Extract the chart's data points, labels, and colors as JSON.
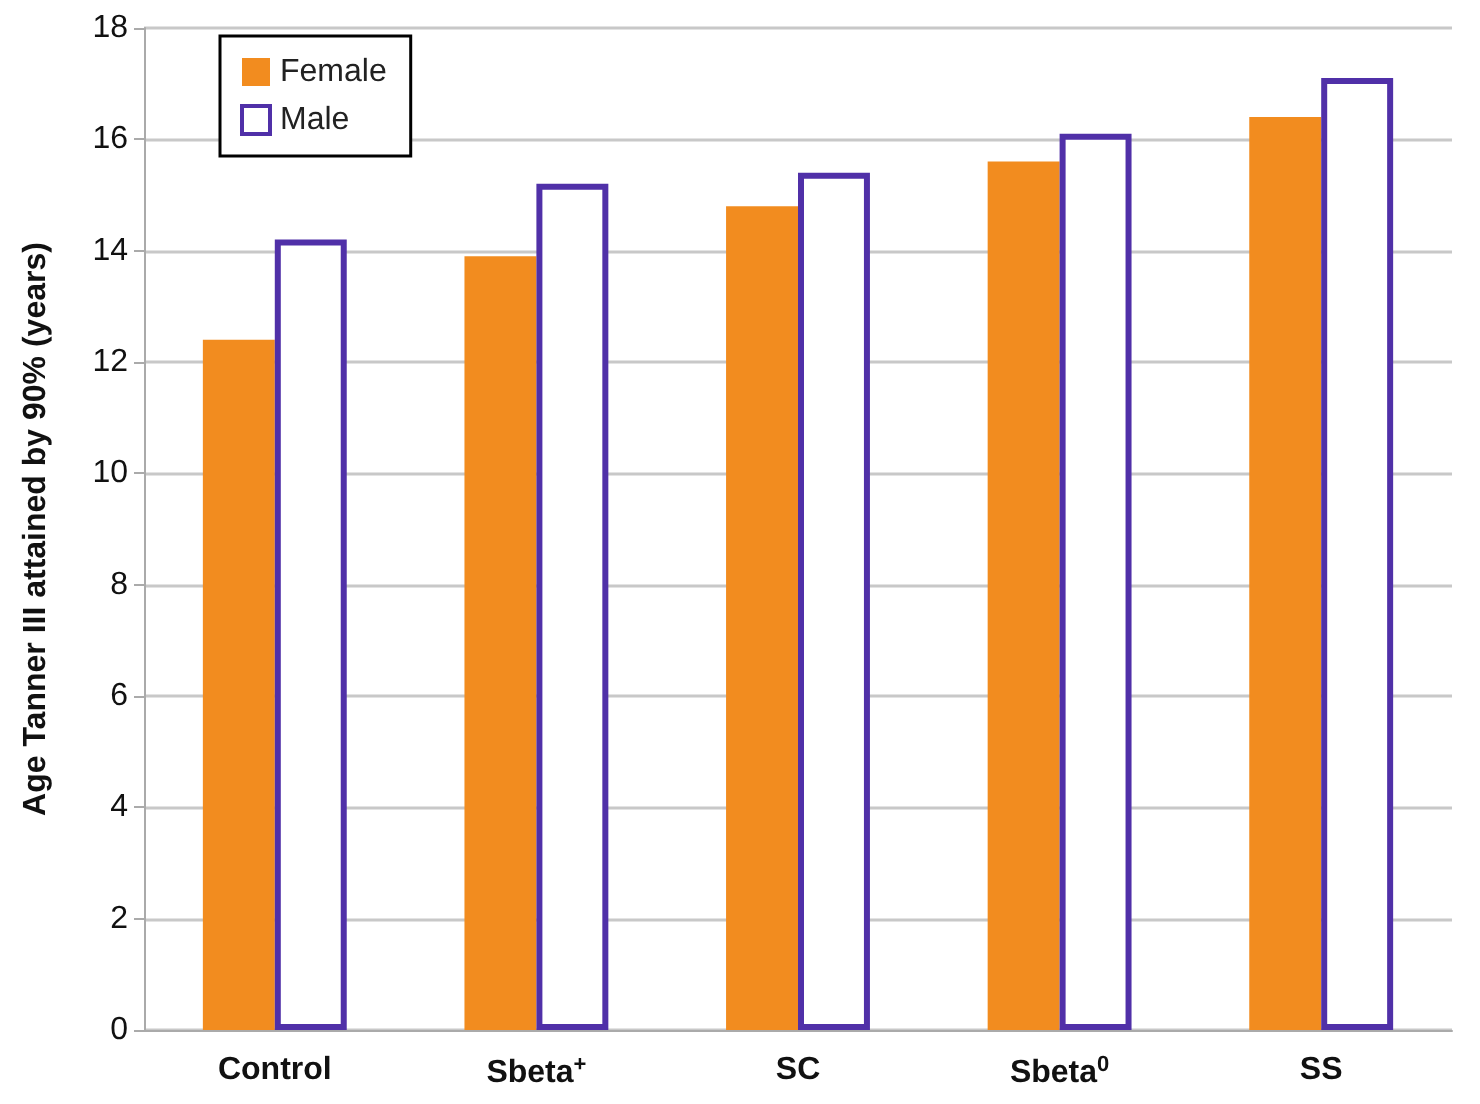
{
  "chart_data": {
    "type": "bar",
    "ylabel": "Age Tanner III attained by 90% (years)",
    "categories": [
      "Control",
      "Sbeta$^{+}$",
      "SC",
      "Sbeta$^{0}$",
      "SS"
    ],
    "series": [
      {
        "name": "Female",
        "color": "#f28c1f",
        "values": [
          12.4,
          13.9,
          14.8,
          15.6,
          16.4
        ]
      },
      {
        "name": "Male",
        "color": "#5030a8",
        "values": [
          14.2,
          15.2,
          15.4,
          16.1,
          17.1
        ]
      }
    ],
    "ylim": [
      0,
      18
    ],
    "yticks": [
      0,
      2,
      4,
      6,
      8,
      10,
      12,
      14,
      16,
      18
    ],
    "grid": "y",
    "legend": "top left"
  }
}
